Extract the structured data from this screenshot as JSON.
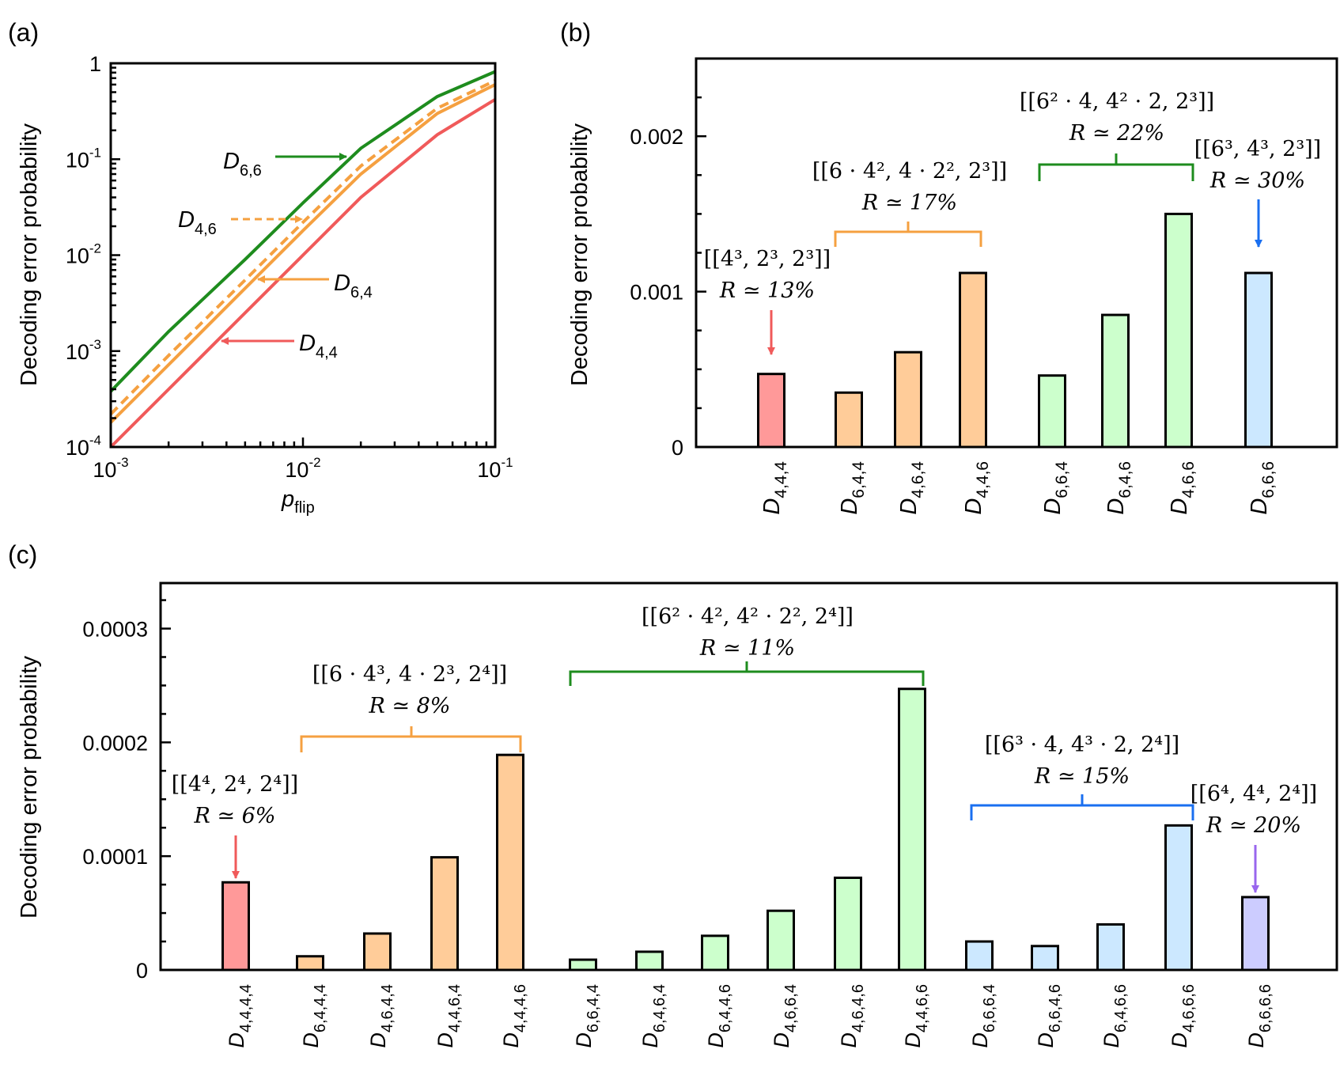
{
  "chart_data": [
    {
      "id": "a",
      "panel_label": "(a)",
      "type": "line",
      "xscale": "log",
      "yscale": "log",
      "xlim": [
        0.001,
        0.1
      ],
      "ylim": [
        0.0001,
        1
      ],
      "xticks": [
        {
          "value": 0.001,
          "base": "10",
          "exp": "-3"
        },
        {
          "value": 0.01,
          "base": "10",
          "exp": "-2"
        },
        {
          "value": 0.1,
          "base": "10",
          "exp": "-1"
        }
      ],
      "yticks": [
        {
          "value": 0.0001,
          "base": "10",
          "exp": "-4"
        },
        {
          "value": 0.001,
          "base": "10",
          "exp": "-3"
        },
        {
          "value": 0.01,
          "base": "10",
          "exp": "-2"
        },
        {
          "value": 0.1,
          "base": "10",
          "exp": "-1"
        },
        {
          "value": 1,
          "base": "1",
          "exp": ""
        }
      ],
      "xlabel": {
        "main": "p",
        "sub": "flip"
      },
      "ylabel": "Decoding error probability",
      "series": [
        {
          "name": "D",
          "sub": "6,6",
          "color": "#1e8c1e",
          "dash": false,
          "x": [
            0.001,
            0.002,
            0.005,
            0.01,
            0.02,
            0.05,
            0.1
          ],
          "y": [
            0.00038,
            0.0016,
            0.009,
            0.035,
            0.13,
            0.45,
            0.82
          ]
        },
        {
          "name": "D",
          "sub": "4,6",
          "color": "#f5a040",
          "dash": true,
          "x": [
            0.001,
            0.002,
            0.005,
            0.01,
            0.02,
            0.05,
            0.1
          ],
          "y": [
            0.00022,
            0.0009,
            0.0055,
            0.022,
            0.085,
            0.34,
            0.66
          ]
        },
        {
          "name": "D",
          "sub": "6,4",
          "color": "#f5a040",
          "dash": false,
          "x": [
            0.001,
            0.002,
            0.005,
            0.01,
            0.02,
            0.05,
            0.1
          ],
          "y": [
            0.00018,
            0.00072,
            0.0045,
            0.018,
            0.07,
            0.3,
            0.6
          ]
        },
        {
          "name": "D",
          "sub": "4,4",
          "color": "#f05a5a",
          "dash": false,
          "x": [
            0.001,
            0.002,
            0.005,
            0.01,
            0.02,
            0.05,
            0.1
          ],
          "y": [
            0.0001,
            0.0004,
            0.0025,
            0.01,
            0.04,
            0.18,
            0.42
          ]
        }
      ]
    },
    {
      "id": "b",
      "panel_label": "(b)",
      "type": "bar",
      "ylabel": "Decoding error probability",
      "ylim": [
        0,
        0.0025
      ],
      "yticks": [
        {
          "value": 0,
          "label": "0"
        },
        {
          "value": 0.001,
          "label": "0.001"
        },
        {
          "value": 0.002,
          "label": "0.002"
        }
      ],
      "categories": [
        "4,4,4",
        "6,4,4",
        "4,6,4",
        "4,4,6",
        "6,6,4",
        "6,4,6",
        "4,6,6",
        "6,6,6"
      ],
      "values": [
        0.00047,
        0.00035,
        0.00061,
        0.00112,
        0.00046,
        0.00085,
        0.0015,
        0.00112
      ],
      "fills": [
        "#ff9999",
        "#ffcc99",
        "#ffcc99",
        "#ffcc99",
        "#ccffcc",
        "#ccffcc",
        "#ccffcc",
        "#cce8ff"
      ],
      "annotations": [
        {
          "code": "[[4³, 2³, 2³]]",
          "rate": "R ≃ 13%",
          "color": "#f05a5a"
        },
        {
          "code": "[[6 · 4², 4 · 2², 2³]]",
          "rate": "R ≃ 17%",
          "color": "#f5a040"
        },
        {
          "code": "[[6² · 4, 4² · 2, 2³]]",
          "rate": "R ≃ 22%",
          "color": "#1e8c1e"
        },
        {
          "code": "[[6³, 4³, 2³]]",
          "rate": "R ≃ 30%",
          "color": "#1a6ff0"
        }
      ]
    },
    {
      "id": "c",
      "panel_label": "(c)",
      "type": "bar",
      "ylabel": "Decoding error probability",
      "ylim": [
        0,
        0.00034
      ],
      "yticks": [
        {
          "value": 0,
          "label": "0"
        },
        {
          "value": 0.0001,
          "label": "0.0001"
        },
        {
          "value": 0.0002,
          "label": "0.0002"
        },
        {
          "value": 0.0003,
          "label": "0.0003"
        }
      ],
      "categories": [
        "4,4,4,4",
        "6,4,4,4",
        "4,6,4,4",
        "4,4,6,4",
        "4,4,4,6",
        "6,6,4,4",
        "6,4,6,4",
        "6,4,4,6",
        "4,6,6,4",
        "4,6,4,6",
        "4,4,6,6",
        "6,6,6,4",
        "6,6,4,6",
        "6,4,6,6",
        "4,6,6,6",
        "6,6,6,6"
      ],
      "values": [
        7.7e-05,
        1.2e-05,
        3.2e-05,
        9.9e-05,
        0.000189,
        9e-06,
        1.6e-05,
        3e-05,
        5.2e-05,
        8.1e-05,
        0.000247,
        2.5e-05,
        2.1e-05,
        4e-05,
        0.000127,
        6.4e-05
      ],
      "fills": [
        "#ff9999",
        "#ffcc99",
        "#ffcc99",
        "#ffcc99",
        "#ffcc99",
        "#ccffcc",
        "#ccffcc",
        "#ccffcc",
        "#ccffcc",
        "#ccffcc",
        "#ccffcc",
        "#cce8ff",
        "#cce8ff",
        "#cce8ff",
        "#cce8ff",
        "#ccccff"
      ],
      "annotations": [
        {
          "code": "[[4⁴, 2⁴, 2⁴]]",
          "rate": "R ≃ 6%",
          "color": "#f05a5a"
        },
        {
          "code": "[[6 · 4³, 4 · 2³, 2⁴]]",
          "rate": "R ≃ 8%",
          "color": "#f5a040"
        },
        {
          "code": "[[6² · 4², 4² · 2², 2⁴]]",
          "rate": "R ≃ 11%",
          "color": "#1e8c1e"
        },
        {
          "code": "[[6³ · 4, 4³ · 2, 2⁴]]",
          "rate": "R ≃ 15%",
          "color": "#1a6ff0"
        },
        {
          "code": "[[6⁴, 4⁴, 2⁴]]",
          "rate": "R ≃ 20%",
          "color": "#9966ee"
        }
      ]
    }
  ]
}
